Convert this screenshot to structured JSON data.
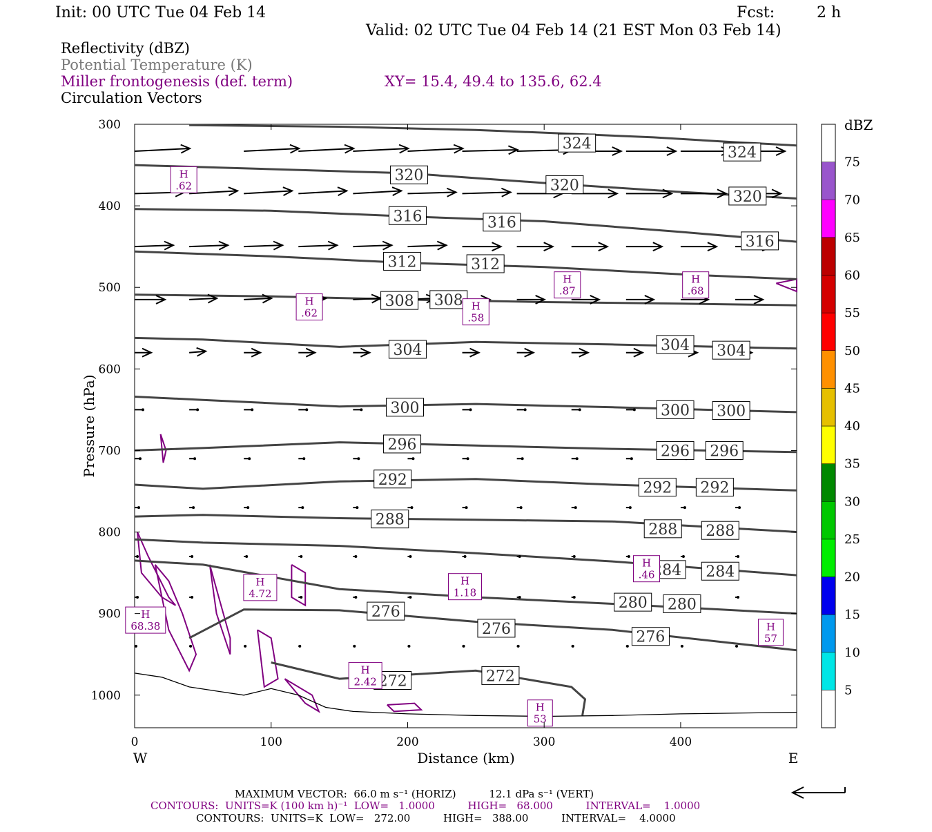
{
  "header": {
    "init": "Init: 00 UTC Tue 04 Feb 14",
    "fcst_label": "Fcst:",
    "fcst_value": "2 h",
    "valid": "Valid: 02 UTC Tue 04 Feb 14 (21 EST Mon 03 Feb 14)"
  },
  "legend": {
    "reflectivity": "Reflectivity (dBZ)",
    "theta": "Potential Temperature (K)",
    "miller": "Miller frontogenesis (def. term)",
    "xy": "XY=  15.4, 49.4 to 135.6, 62.4",
    "vectors": "Circulation Vectors"
  },
  "colors": {
    "theta": "#444444",
    "frontogenesis": "#800080",
    "vector": "#000000",
    "terrain": "#000000"
  },
  "colorbar": {
    "title": "dBZ",
    "labels": [
      "5",
      "10",
      "15",
      "20",
      "25",
      "30",
      "35",
      "40",
      "45",
      "50",
      "55",
      "60",
      "65",
      "70",
      "75"
    ],
    "colors": [
      "#00e6e6",
      "#0099ee",
      "#0000ee",
      "#00ee00",
      "#00c800",
      "#008800",
      "#ffff00",
      "#e6c000",
      "#ff9000",
      "#ff0000",
      "#d40000",
      "#bc0000",
      "#ff00ff",
      "#9955cc",
      "#ffffff"
    ]
  },
  "axes": {
    "ylabel": "Pressure (hPa)",
    "xlabel": "Distance (km)",
    "y_ticks": [
      "300",
      "400",
      "500",
      "600",
      "700",
      "800",
      "900",
      "1000"
    ],
    "x_ticks": [
      "0",
      "100",
      "200",
      "300",
      "400"
    ],
    "west": "W",
    "east": "E"
  },
  "footer": {
    "max_vector": "MAXIMUM VECTOR:  66.0 m s⁻¹ (HORIZ)          12.1 dPa s⁻¹ (VERT)",
    "contours_fg": "CONTOURS:  UNITS=K (100 km h)⁻¹  LOW=   1.0000          HIGH=   68.000          INTERVAL=    1.0000",
    "contours_theta": "CONTOURS:  UNITS=K  LOW=   272.00          HIGH=   388.00          INTERVAL=    4.0000"
  },
  "chart_data": {
    "type": "line",
    "xlim": [
      0,
      485
    ],
    "ylim": [
      300,
      1040
    ],
    "theta_contours": [
      {
        "name": "324",
        "x": [
          40,
          150,
          250,
          310,
          380,
          440,
          485
        ],
        "y": [
          301,
          303,
          307,
          311,
          316,
          322,
          326
        ],
        "label_x": [
          324,
          445
        ],
        "label_y": [
          323,
          334
        ]
      },
      {
        "name": "320",
        "x": [
          0,
          100,
          200,
          300,
          400,
          485
        ],
        "y": [
          350,
          355,
          360,
          372,
          383,
          391
        ],
        "label_x": [
          201,
          315,
          449
        ],
        "label_y": [
          362,
          374,
          388
        ]
      },
      {
        "name": "316",
        "x": [
          0,
          100,
          200,
          300,
          400,
          485
        ],
        "y": [
          404,
          406,
          413,
          419,
          432,
          444
        ],
        "label_x": [
          200,
          269,
          458
        ],
        "label_y": [
          412,
          420,
          443
        ]
      },
      {
        "name": "312",
        "x": [
          0,
          100,
          200,
          300,
          400,
          485
        ],
        "y": [
          456,
          462,
          470,
          475,
          484,
          490
        ],
        "label_x": [
          196,
          257
        ],
        "label_y": [
          468,
          471
        ]
      },
      {
        "name": "308",
        "x": [
          0,
          100,
          200,
          300,
          400,
          485
        ],
        "y": [
          509,
          511,
          515,
          518,
          520,
          522
        ],
        "label_x": [
          194,
          230
        ],
        "label_y": [
          516,
          515
        ]
      },
      {
        "name": "304",
        "x": [
          0,
          50,
          150,
          250,
          350,
          485
        ],
        "y": [
          562,
          564,
          573,
          567,
          570,
          575
        ],
        "label_x": [
          200,
          396,
          437
        ],
        "label_y": [
          576,
          570,
          577
        ]
      },
      {
        "name": "300",
        "x": [
          0,
          50,
          150,
          250,
          350,
          485
        ],
        "y": [
          634,
          638,
          646,
          643,
          647,
          653
        ],
        "label_x": [
          198,
          396,
          437
        ],
        "label_y": [
          647,
          650,
          651
        ]
      },
      {
        "name": "296",
        "x": [
          0,
          50,
          150,
          250,
          350,
          485
        ],
        "y": [
          700,
          697,
          690,
          694,
          698,
          702
        ],
        "label_x": [
          196,
          396,
          432
        ],
        "label_y": [
          692,
          700,
          700
        ]
      },
      {
        "name": "292",
        "x": [
          0,
          50,
          150,
          250,
          350,
          485
        ],
        "y": [
          742,
          747,
          738,
          735,
          742,
          749
        ],
        "label_x": [
          189,
          383,
          425
        ],
        "label_y": [
          735,
          745,
          745
        ]
      },
      {
        "name": "288",
        "x": [
          0,
          50,
          150,
          250,
          350,
          485
        ],
        "y": [
          781,
          779,
          783,
          785,
          787,
          800
        ],
        "label_x": [
          187,
          387,
          429
        ],
        "label_y": [
          784,
          796,
          798
        ]
      },
      {
        "name": "284",
        "x": [
          0,
          50,
          150,
          250,
          350,
          485
        ],
        "y": [
          809,
          813,
          817,
          826,
          836,
          853
        ],
        "label_x": [
          390,
          429
        ],
        "label_y": [
          846,
          848
        ]
      },
      {
        "name": "280",
        "x": [
          0,
          50,
          150,
          250,
          350,
          485
        ],
        "y": [
          835,
          840,
          870,
          880,
          888,
          900
        ],
        "label_x": [
          365,
          401
        ],
        "label_y": [
          886,
          888
        ]
      },
      {
        "name": "276",
        "x": [
          40,
          80,
          150,
          250,
          350,
          485
        ],
        "y": [
          930,
          895,
          896,
          910,
          920,
          945
        ],
        "label_x": [
          184,
          265,
          378
        ],
        "label_y": [
          897,
          918,
          928
        ]
      },
      {
        "name": "272",
        "x": [
          100,
          150,
          250,
          320,
          330,
          328
        ],
        "y": [
          960,
          980,
          970,
          990,
          1005,
          1025
        ],
        "label_x": [
          189,
          268
        ],
        "label_y": [
          982,
          976
        ]
      }
    ],
    "frontogenesis_maxima": [
      {
        "label": "H",
        "value": ".62",
        "x": 36,
        "y": 368
      },
      {
        "label": "H",
        "value": ".87",
        "x": 317,
        "y": 497
      },
      {
        "label": "H",
        "value": ".68",
        "x": 411,
        "y": 497
      },
      {
        "label": "H",
        "value": ".62",
        "x": 128,
        "y": 524
      },
      {
        "label": "H",
        "value": ".58",
        "x": 250,
        "y": 530
      },
      {
        "label": "H",
        "value": "4.72",
        "x": 92,
        "y": 868
      },
      {
        "label": "H",
        "value": "1.18",
        "x": 242,
        "y": 867
      },
      {
        "label": "H",
        "value": ".46",
        "x": 375,
        "y": 845
      },
      {
        "label": "H",
        "value": "68.38",
        "x": 8,
        "y": 908
      },
      {
        "label": "H",
        "value": "57",
        "x": 466,
        "y": 923
      },
      {
        "label": "H",
        "value": "2.42",
        "x": 169,
        "y": 976
      },
      {
        "label": "H",
        "value": "53",
        "x": 297,
        "y": 1022
      }
    ],
    "fg_contours": [
      {
        "x": [
          2,
          10,
          25,
          30,
          20,
          5,
          2
        ],
        "y": [
          800,
          830,
          880,
          890,
          880,
          850,
          800
        ]
      },
      {
        "x": [
          15,
          25,
          35,
          45,
          40,
          25,
          15
        ],
        "y": [
          840,
          860,
          900,
          950,
          970,
          920,
          840
        ]
      },
      {
        "x": [
          55,
          60,
          70,
          70,
          60,
          55
        ],
        "y": [
          840,
          870,
          930,
          950,
          900,
          840
        ]
      },
      {
        "x": [
          115,
          125,
          125,
          115,
          115
        ],
        "y": [
          840,
          850,
          890,
          880,
          840
        ]
      },
      {
        "x": [
          90,
          100,
          105,
          95,
          90
        ],
        "y": [
          920,
          930,
          980,
          990,
          920
        ]
      },
      {
        "x": [
          110,
          130,
          135,
          125,
          110
        ],
        "y": [
          980,
          1000,
          1020,
          1010,
          980
        ]
      },
      {
        "x": [
          19,
          23,
          21,
          19
        ],
        "y": [
          680,
          700,
          715,
          680
        ]
      },
      {
        "x": [
          470,
          485,
          485,
          470
        ],
        "y": [
          495,
          490,
          505,
          495
        ]
      },
      {
        "x": [
          185,
          205,
          210,
          190,
          185
        ],
        "y": [
          1012,
          1010,
          1018,
          1020,
          1012
        ]
      }
    ],
    "terrain": {
      "x": [
        0,
        20,
        40,
        60,
        80,
        100,
        120,
        140,
        160,
        200,
        250,
        300,
        350,
        400,
        485
      ],
      "y": [
        973,
        978,
        990,
        995,
        1000,
        992,
        1000,
        1015,
        1020,
        1023,
        1025,
        1026,
        1025,
        1023,
        1021
      ]
    },
    "vectors": [
      {
        "p": 333,
        "x": [
          0,
          80,
          120,
          160,
          200,
          240,
          280,
          320,
          360,
          400,
          440
        ],
        "u": [
          40,
          40,
          40,
          40,
          40,
          40,
          40,
          36,
          36,
          36,
          36
        ],
        "v": [
          -2,
          -2,
          -2,
          -2,
          -2,
          -1,
          -1,
          0,
          0,
          0,
          0
        ]
      },
      {
        "p": 385,
        "x": [
          0,
          40,
          80,
          120,
          160,
          200,
          240,
          280,
          320,
          360,
          400,
          440
        ],
        "u": [
          36,
          35,
          35,
          35,
          35,
          35,
          35,
          33,
          33,
          33,
          33,
          33
        ],
        "v": [
          -1,
          -2,
          -2,
          -2,
          -2,
          -1,
          -1,
          0,
          0,
          0,
          0,
          0
        ]
      },
      {
        "p": 450,
        "x": [
          0,
          40,
          80,
          120,
          160,
          200,
          240,
          280,
          320,
          360,
          400,
          440
        ],
        "u": [
          28,
          28,
          28,
          28,
          28,
          28,
          28,
          26,
          26,
          26,
          26,
          26
        ],
        "v": [
          -1,
          -1,
          -1,
          -1,
          -1,
          -1,
          0,
          0,
          0,
          0,
          0,
          0
        ]
      },
      {
        "p": 515,
        "x": [
          0,
          40,
          80,
          120,
          160,
          200,
          240,
          280,
          320,
          360,
          400,
          440
        ],
        "u": [
          22,
          20,
          20,
          20,
          20,
          20,
          20,
          20,
          20,
          20,
          20,
          20
        ],
        "v": [
          0,
          -1,
          -1,
          -1,
          -1,
          -1,
          0,
          0,
          0,
          0,
          0,
          0
        ]
      },
      {
        "p": 580,
        "x": [
          0,
          40,
          80,
          120,
          160,
          200,
          240,
          280,
          320,
          360,
          400,
          440
        ],
        "u": [
          12,
          12,
          12,
          12,
          12,
          12,
          12,
          12,
          12,
          12,
          12,
          12
        ],
        "v": [
          0,
          -1,
          0,
          0,
          0,
          0,
          0,
          0,
          0,
          0,
          0,
          0
        ]
      },
      {
        "p": 650,
        "x": [
          0,
          40,
          80,
          120,
          160,
          200,
          240,
          280,
          320,
          360,
          400,
          440
        ],
        "u": [
          6,
          6,
          6,
          6,
          6,
          6,
          6,
          6,
          6,
          6,
          6,
          6
        ],
        "v": [
          0,
          0,
          0,
          0,
          0,
          0,
          0,
          0,
          0,
          0,
          0,
          0
        ]
      },
      {
        "p": 710,
        "x": [
          0,
          40,
          80,
          120,
          160,
          200,
          240,
          280,
          320,
          360,
          400,
          440
        ],
        "u": [
          4,
          4,
          4,
          4,
          4,
          4,
          4,
          4,
          4,
          4,
          4,
          4
        ],
        "v": [
          0,
          0,
          0,
          0,
          0,
          0,
          0,
          0,
          0,
          0,
          0,
          0
        ]
      },
      {
        "p": 770,
        "x": [
          0,
          40,
          80,
          120,
          160,
          200,
          240,
          280,
          320,
          360,
          400,
          440
        ],
        "u": [
          3,
          3,
          3,
          3,
          3,
          3,
          3,
          3,
          3,
          3,
          3,
          3
        ],
        "v": [
          0,
          0,
          0,
          0,
          0,
          0,
          0,
          0,
          0,
          0,
          0,
          0
        ]
      },
      {
        "p": 830,
        "x": [
          0,
          40,
          80,
          120,
          160,
          200,
          240,
          280,
          320,
          360,
          400,
          440
        ],
        "u": [
          2,
          2,
          2,
          2,
          2,
          2,
          2,
          2,
          2,
          2,
          2,
          2
        ],
        "v": [
          0,
          0,
          0,
          0,
          0,
          0,
          0,
          0,
          0,
          0,
          0,
          0
        ]
      },
      {
        "p": 880,
        "x": [
          0,
          40,
          80,
          120,
          160,
          200,
          240,
          280,
          320,
          360,
          400,
          440
        ],
        "u": [
          2,
          2,
          2,
          2,
          2,
          2,
          2,
          2,
          2,
          2,
          2,
          2
        ],
        "v": [
          0,
          0,
          0,
          0,
          0,
          0,
          0,
          0,
          0,
          0,
          0,
          0
        ]
      },
      {
        "p": 940,
        "x": [
          0,
          40,
          80,
          120,
          160,
          200,
          240,
          280,
          320,
          360,
          400,
          440
        ],
        "u": [
          1,
          1,
          1,
          1,
          1,
          1,
          1,
          1,
          1,
          1,
          1,
          1
        ],
        "v": [
          0,
          0,
          0,
          0,
          0,
          0,
          0,
          0,
          0,
          0,
          0,
          0
        ]
      }
    ]
  }
}
